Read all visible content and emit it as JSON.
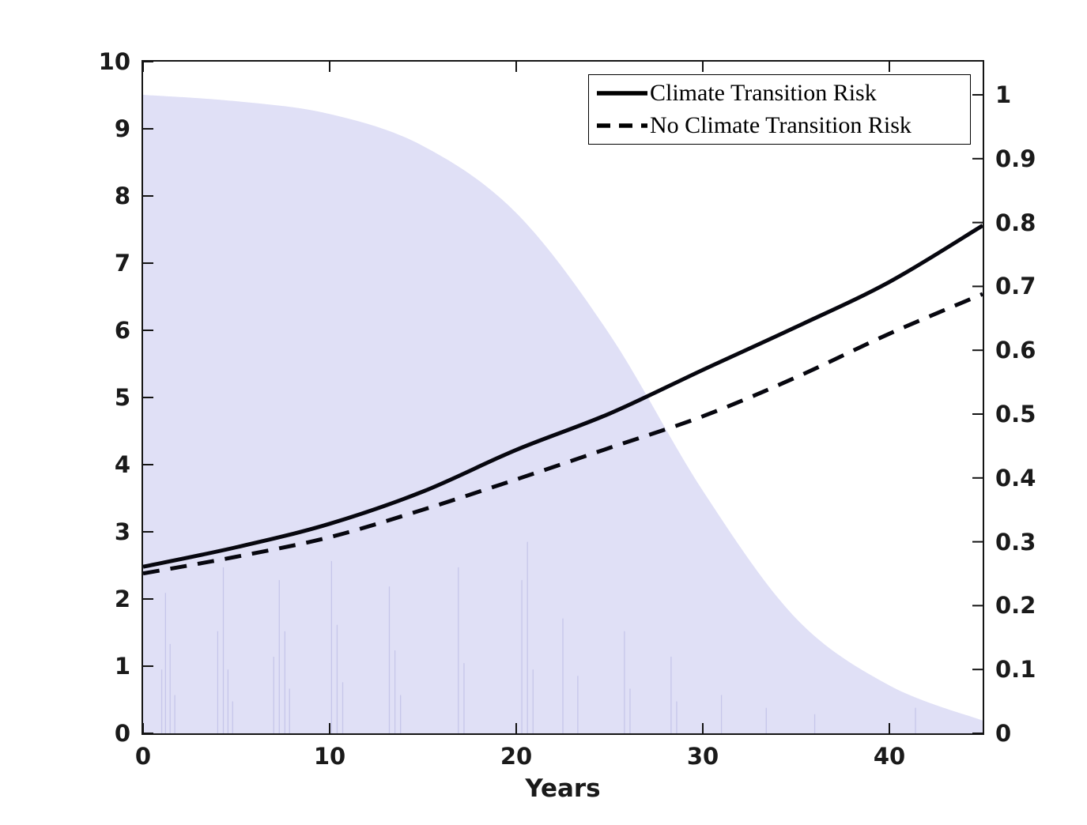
{
  "figure": {
    "background": "#ffffff",
    "axis_color": "#141414",
    "tick_text_color": "#1a1a1a"
  },
  "chart_data": {
    "type": "line",
    "xlabel": "Years",
    "xlim": [
      0,
      45
    ],
    "left_ylim": [
      0,
      10
    ],
    "right_ylim": [
      0,
      1.052
    ],
    "grid": false,
    "legend_position": "northeast",
    "x": [
      0,
      5,
      10,
      15,
      20,
      25,
      30,
      35,
      40,
      45
    ],
    "series": [
      {
        "name": "Climate Transition Risk",
        "style": "solid",
        "axis": "left",
        "color": "#07070f",
        "values": [
          2.48,
          2.77,
          3.12,
          3.6,
          4.22,
          4.76,
          5.41,
          6.05,
          6.72,
          7.56
        ]
      },
      {
        "name": "No Climate Transition Risk",
        "style": "dashed",
        "axis": "left",
        "color": "#07070f",
        "values": [
          2.38,
          2.63,
          2.92,
          3.33,
          3.78,
          4.25,
          4.72,
          5.3,
          5.95,
          6.54
        ]
      }
    ],
    "area": {
      "name": "shaded-distribution",
      "axis": "right",
      "color": "#e0e0f6",
      "streak_color": "#c6c6ea",
      "values": [
        1.0,
        0.99,
        0.97,
        0.92,
        0.815,
        0.625,
        0.38,
        0.18,
        0.075,
        0.02
      ]
    },
    "streaks": [
      [
        1.0,
        0.1
      ],
      [
        1.2,
        0.22
      ],
      [
        1.45,
        0.14
      ],
      [
        1.7,
        0.06
      ],
      [
        4.0,
        0.16
      ],
      [
        4.3,
        0.26
      ],
      [
        4.55,
        0.1
      ],
      [
        4.8,
        0.05
      ],
      [
        7.0,
        0.12
      ],
      [
        7.3,
        0.24
      ],
      [
        7.6,
        0.16
      ],
      [
        7.85,
        0.07
      ],
      [
        10.1,
        0.27
      ],
      [
        10.4,
        0.17
      ],
      [
        10.7,
        0.08
      ],
      [
        13.2,
        0.23
      ],
      [
        13.5,
        0.13
      ],
      [
        13.8,
        0.06
      ],
      [
        16.9,
        0.26
      ],
      [
        17.2,
        0.11
      ],
      [
        20.3,
        0.24
      ],
      [
        20.6,
        0.3
      ],
      [
        20.9,
        0.1
      ],
      [
        22.5,
        0.18
      ],
      [
        23.3,
        0.09
      ],
      [
        25.8,
        0.16
      ],
      [
        26.1,
        0.07
      ],
      [
        28.3,
        0.12
      ],
      [
        28.6,
        0.05
      ],
      [
        31.0,
        0.06
      ],
      [
        33.4,
        0.04
      ],
      [
        36.0,
        0.03
      ],
      [
        41.4,
        0.04
      ]
    ],
    "x_ticks": {
      "values": [
        0,
        10,
        20,
        30,
        40
      ],
      "labels": [
        "0",
        "10",
        "20",
        "30",
        "40"
      ]
    },
    "left_ticks": {
      "values": [
        0,
        1,
        2,
        3,
        4,
        5,
        6,
        7,
        8,
        9,
        10
      ],
      "labels": [
        "0",
        "1",
        "2",
        "3",
        "4",
        "5",
        "6",
        "7",
        "8",
        "9",
        "10"
      ]
    },
    "right_ticks": {
      "values": [
        0,
        0.1,
        0.2,
        0.3,
        0.4,
        0.5,
        0.6,
        0.7,
        0.8,
        0.9,
        1.0
      ],
      "labels": [
        "0",
        "0.1",
        "0.2",
        "0.3",
        "0.4",
        "0.5",
        "0.6",
        "0.7",
        "0.8",
        "0.9",
        "1"
      ]
    }
  }
}
